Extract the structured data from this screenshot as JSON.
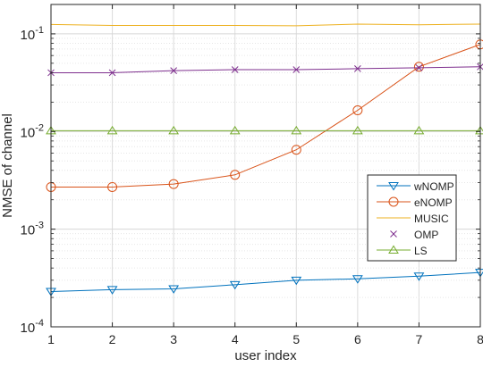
{
  "chart_data": {
    "type": "line",
    "title": "",
    "xlabel": "user index",
    "ylabel": "NMSE of channel",
    "x": [
      1,
      2,
      3,
      4,
      5,
      6,
      7,
      8
    ],
    "xlim": [
      1,
      8
    ],
    "ylim": [
      0.0001,
      0.2
    ],
    "yscale": "log",
    "x_ticks": [
      "1",
      "2",
      "3",
      "4",
      "5",
      "6",
      "7",
      "8"
    ],
    "y_ticks": [
      {
        "value": 0.0001,
        "base": "10",
        "exp": "-4"
      },
      {
        "value": 0.001,
        "base": "10",
        "exp": "-3"
      },
      {
        "value": 0.01,
        "base": "10",
        "exp": "-2"
      },
      {
        "value": 0.1,
        "base": "10",
        "exp": "-1"
      }
    ],
    "grid": true,
    "legend_position": "right",
    "series": [
      {
        "name": "wNOMP",
        "color": "#0072BD",
        "marker": "triangle-down",
        "values": [
          0.00023,
          0.00024,
          0.000245,
          0.00027,
          0.0003,
          0.00031,
          0.00033,
          0.00036
        ]
      },
      {
        "name": "eNOMP",
        "color": "#D95319",
        "marker": "circle",
        "values": [
          0.0027,
          0.0027,
          0.0029,
          0.0036,
          0.0065,
          0.0165,
          0.046,
          0.078
        ]
      },
      {
        "name": "MUSIC",
        "color": "#EDB120",
        "marker": "none",
        "values": [
          0.125,
          0.122,
          0.122,
          0.122,
          0.121,
          0.126,
          0.124,
          0.126
        ]
      },
      {
        "name": "OMP",
        "color": "#7E2F8E",
        "marker": "x",
        "values": [
          0.04,
          0.04,
          0.042,
          0.043,
          0.043,
          0.044,
          0.045,
          0.046
        ]
      },
      {
        "name": "LS",
        "color": "#77AC30",
        "marker": "triangle-up",
        "values": [
          0.0102,
          0.0102,
          0.0102,
          0.0102,
          0.0102,
          0.0102,
          0.0102,
          0.0102
        ]
      }
    ]
  }
}
